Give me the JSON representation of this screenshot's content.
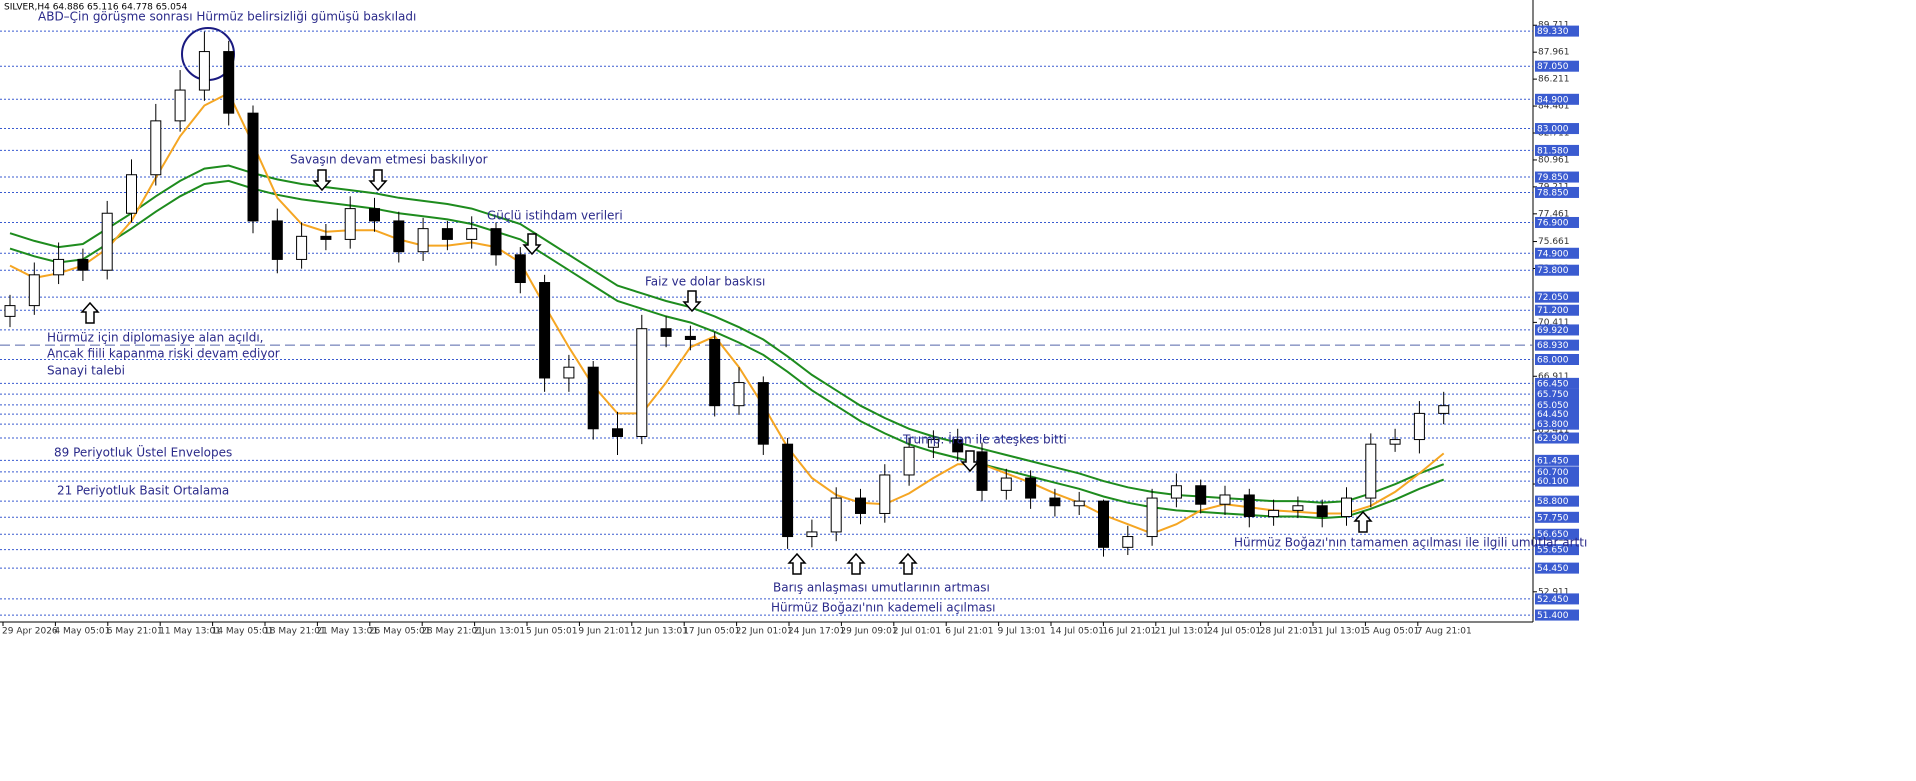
{
  "chart_data": {
    "type": "candlestick",
    "header": "SILVER,H4  64.886 65.116 64.778 65.054",
    "annotations": [
      "ABD–Çin görüşme sonrası Hürmüz belirsizliği gümüşü baskıladı",
      "Savaşın devam etmesi baskılıyor",
      "Güçlü istihdam verileri",
      "Faiz ve dolar baskısı",
      "Hürmüz için diplomasiye alan açıldı,",
      "Ancak fiili kapanma riski devam ediyor",
      "Sanayi talebi",
      "89 Periyotluk Üstel Envelopes",
      "21 Periyotluk Basit Ortalama",
      "Trump: İran ile ateşkes bitti",
      "Barış anlaşması umutlarının artması",
      "Hürmüz Boğazı'nın kademeli açılması",
      "Hürmüz Boğazı'nın tamamen açılması ile ilgili umutlar arttı"
    ],
    "x_labels": [
      "29 Apr 2026",
      "4 May 05:01",
      "6 May 21:01",
      "11 May 13:01",
      "14 May 05:01",
      "18 May 21:01",
      "21 May 13:01",
      "26 May 05:01",
      "28 May 21:01",
      "2 Jun 13:01",
      "5 Jun 05:01",
      "9 Jun 21:01",
      "12 Jun 13:01",
      "17 Jun 05:01",
      "22 Jun 01:01",
      "24 Jun 17:01",
      "29 Jun 09:01",
      "2 Jul 01:01",
      "6 Jul 21:01",
      "9 Jul 13:01",
      "14 Jul 05:01",
      "16 Jul 21:01",
      "21 Jul 13:01",
      "24 Jul 05:01",
      "28 Jul 21:01",
      "31 Jul 13:01",
      "5 Aug 05:01",
      "7 Aug 21:01"
    ],
    "open": [
      70.8,
      71.5,
      73.5,
      74.5,
      73.8,
      77.5,
      80,
      83.5,
      85.5,
      88,
      84,
      77,
      74.5,
      76,
      75.8,
      77.8,
      77,
      75,
      76.5,
      75.8,
      76.5,
      74.8,
      73,
      66.8,
      67.5,
      63.5,
      63,
      70,
      69.5,
      69.3,
      65,
      66.5,
      62.5,
      56.5,
      56.8,
      59,
      58,
      60.5,
      62.3,
      62.8,
      62,
      59.5,
      60.3,
      59,
      58.5,
      58.8,
      55.8,
      56.5,
      59,
      59.8,
      58.6,
      59.2,
      57.8,
      58.2,
      58.5,
      57.8,
      59,
      62.5,
      62.8,
      64.5
    ],
    "high": [
      72.2,
      74.3,
      75.6,
      75.2,
      78.3,
      81,
      84.6,
      86.8,
      89.3,
      88.7,
      84.5,
      77.8,
      76.9,
      76.8,
      78.6,
      78.5,
      77.6,
      77.2,
      77,
      77.3,
      76.9,
      75.3,
      73.5,
      68.3,
      67.9,
      64.6,
      70.9,
      70.8,
      70.2,
      69.8,
      67.5,
      66.9,
      62.9,
      57.6,
      59.7,
      59.6,
      61.2,
      62.9,
      63.4,
      63.5,
      62.6,
      60.9,
      60.8,
      59.6,
      59.4,
      58.9,
      57.2,
      59.6,
      60.6,
      60.2,
      59.8,
      59.6,
      58.9,
      59.1,
      58.9,
      59.7,
      63.2,
      63.5,
      65.3,
      65.9
    ],
    "low": [
      70.1,
      70.9,
      72.9,
      73.1,
      73.2,
      76.9,
      79.3,
      82.8,
      84.8,
      83.2,
      76.2,
      73.6,
      73.9,
      75.1,
      75.2,
      76.3,
      74.3,
      74.4,
      75.1,
      75.2,
      74.1,
      72.3,
      65.9,
      65.9,
      62.8,
      61.8,
      62.5,
      68.8,
      68.6,
      64.3,
      64.4,
      61.8,
      55.7,
      55.8,
      56.2,
      57.3,
      57.4,
      59.8,
      61.6,
      61.4,
      58.8,
      58.9,
      58.3,
      57.8,
      57.9,
      55.2,
      55.3,
      55.9,
      58.4,
      58,
      57.9,
      57.1,
      57.2,
      57.7,
      57.1,
      57.2,
      58.4,
      62,
      61.9,
      63.8
    ],
    "close": [
      71.5,
      73.5,
      74.5,
      73.8,
      77.5,
      80,
      83.5,
      85.5,
      88,
      84,
      77,
      74.5,
      76,
      75.8,
      77.8,
      77,
      75,
      76.5,
      75.8,
      76.5,
      74.8,
      73,
      66.8,
      67.5,
      63.5,
      63,
      70,
      69.5,
      69.3,
      65,
      66.5,
      62.5,
      56.5,
      56.8,
      59,
      58,
      60.5,
      62.3,
      62.8,
      62,
      59.5,
      60.3,
      59,
      58.5,
      58.8,
      55.8,
      56.5,
      59,
      59.8,
      58.6,
      59.2,
      57.8,
      58.2,
      58.5,
      57.8,
      59,
      62.5,
      62.8,
      64.5,
      65
    ],
    "up_color": "#ffffff",
    "down_color": "#000000",
    "lines": [
      {
        "color": "#1e8c1e",
        "values": [
          76.2,
          75.7,
          75.3,
          75.5,
          76.5,
          77.5,
          78.6,
          79.6,
          80.4,
          80.6,
          80.1,
          79.7,
          79.4,
          79.2,
          79,
          78.8,
          78.5,
          78.3,
          78.1,
          77.8,
          77.3,
          76.8,
          75.8,
          74.8,
          73.8,
          72.8,
          72.3,
          71.8,
          71.4,
          70.8,
          70.1,
          69.3,
          68.2,
          67,
          66,
          65,
          64.2,
          63.5,
          63,
          62.6,
          62.2,
          61.8,
          61.4,
          61,
          60.6,
          60.1,
          59.7,
          59.4,
          59.2,
          59.1,
          59,
          58.9,
          58.8,
          58.8,
          58.7,
          58.8,
          59.3,
          59.9,
          60.6,
          61.2
        ]
      },
      {
        "color": "#1e8c1e",
        "values": [
          75.2,
          74.7,
          74.3,
          74.5,
          75.5,
          76.5,
          77.6,
          78.6,
          79.4,
          79.6,
          79.1,
          78.7,
          78.4,
          78.2,
          78,
          77.8,
          77.5,
          77.3,
          77.1,
          76.8,
          76.3,
          75.8,
          74.8,
          73.8,
          72.8,
          71.8,
          71.3,
          70.8,
          70.4,
          69.8,
          69.1,
          68.3,
          67.2,
          66,
          65,
          64,
          63.2,
          62.5,
          62,
          61.6,
          61.2,
          60.8,
          60.4,
          60,
          59.6,
          59.1,
          58.7,
          58.4,
          58.2,
          58.1,
          58,
          57.9,
          57.8,
          57.8,
          57.7,
          57.8,
          58.3,
          58.9,
          59.6,
          60.2
        ]
      },
      {
        "color": "#f5a623",
        "values": [
          74.1,
          73.3,
          73.6,
          74.1,
          75.2,
          77,
          79.8,
          82.5,
          84.5,
          85.3,
          82,
          78.5,
          76.8,
          76.3,
          76.4,
          76.4,
          75.8,
          75.4,
          75.4,
          75.6,
          75.3,
          74.3,
          71.5,
          68.8,
          66.3,
          64.5,
          64.5,
          66.5,
          68.8,
          69.5,
          67.5,
          65,
          62.3,
          60.3,
          59.2,
          58.7,
          58.6,
          59.3,
          60.3,
          61.2,
          61.2,
          60.6,
          60,
          59.3,
          58.7,
          57.9,
          57.3,
          56.7,
          57.3,
          58.2,
          58.6,
          58.4,
          58.2,
          58.1,
          58,
          58,
          58.5,
          59.4,
          60.6,
          61.9
        ]
      }
    ],
    "ylim": [
      50.95,
      91.35
    ],
    "yticks": [
      89.711,
      87.961,
      86.211,
      84.461,
      82.711,
      80.961,
      79.211,
      77.461,
      75.661,
      73.911,
      70.411,
      66.911,
      63.411,
      59.911,
      56.411,
      52.911
    ],
    "level_color": "#3a5bd0",
    "levels": [
      {
        "value": 89.33,
        "label": "89.330"
      },
      {
        "value": 87.05,
        "label": "87.050"
      },
      {
        "value": 84.9,
        "label": "84.900"
      },
      {
        "value": 83,
        "label": "83.000"
      },
      {
        "value": 81.58,
        "label": "81.580"
      },
      {
        "value": 79.85,
        "label": "79.850"
      },
      {
        "value": 78.85,
        "label": "78.850"
      },
      {
        "value": 76.9,
        "label": "76.900"
      },
      {
        "value": 74.9,
        "label": "74.900"
      },
      {
        "value": 73.8,
        "label": "73.800"
      },
      {
        "value": 72.05,
        "label": "72.050"
      },
      {
        "value": 71.2,
        "label": "71.200"
      },
      {
        "value": 69.92,
        "label": "69.920"
      },
      {
        "value": 68,
        "label": "68.000"
      },
      {
        "value": 66.45,
        "label": "66.450"
      },
      {
        "value": 65.75,
        "label": "65.750"
      },
      {
        "value": 65.05,
        "label": "65.050"
      },
      {
        "value": 64.45,
        "label": "64.450"
      },
      {
        "value": 63.8,
        "label": "63.800"
      },
      {
        "value": 62.9,
        "label": "62.900"
      },
      {
        "value": 61.45,
        "label": "61.450"
      },
      {
        "value": 60.7,
        "label": "60.700"
      },
      {
        "value": 60.1,
        "label": "60.100"
      },
      {
        "value": 58.8,
        "label": "58.800"
      },
      {
        "value": 57.75,
        "label": "57.750"
      },
      {
        "value": 56.65,
        "label": "56.650"
      },
      {
        "value": 55.65,
        "label": "55.650"
      },
      {
        "value": 54.45,
        "label": "54.450"
      },
      {
        "value": 52.45,
        "label": "52.450"
      },
      {
        "value": 51.4,
        "label": "51.400"
      }
    ],
    "dashed_level": {
      "value": 68.93,
      "label": "68.930"
    }
  }
}
